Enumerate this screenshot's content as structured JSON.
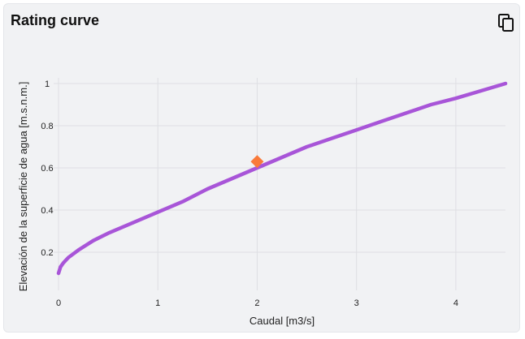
{
  "card": {
    "title": "Rating curve",
    "copy_icon": "copy-icon"
  },
  "colors": {
    "background": "#f1f2f4",
    "line": "#a855d8",
    "marker": "#f97a3a",
    "grid": "#dedfe3"
  },
  "chart_data": {
    "type": "line",
    "xlabel": "Caudal [m3/s]",
    "ylabel": "Elevación de la superficie de agua [m.s.n.m.]",
    "xlim": [
      0,
      4.5
    ],
    "ylim": [
      0.05,
      1.05
    ],
    "xticks": [
      0,
      1,
      2,
      3,
      4
    ],
    "yticks": [
      0.2,
      0.4,
      0.6,
      0.8,
      1
    ],
    "grid": true,
    "series": [
      {
        "x": [
          0.0,
          0.02,
          0.05,
          0.1,
          0.2,
          0.35,
          0.5,
          0.75,
          1.0,
          1.25,
          1.5,
          1.75,
          2.0,
          2.25,
          2.5,
          2.75,
          3.0,
          3.25,
          3.5,
          3.75,
          4.0,
          4.25,
          4.5
        ],
        "y": [
          0.1,
          0.13,
          0.15,
          0.175,
          0.21,
          0.255,
          0.29,
          0.34,
          0.39,
          0.44,
          0.5,
          0.55,
          0.6,
          0.65,
          0.7,
          0.74,
          0.78,
          0.82,
          0.86,
          0.9,
          0.93,
          0.965,
          1.0
        ]
      }
    ],
    "marker": {
      "x": 2.0,
      "y": 0.63,
      "shape": "diamond"
    }
  }
}
